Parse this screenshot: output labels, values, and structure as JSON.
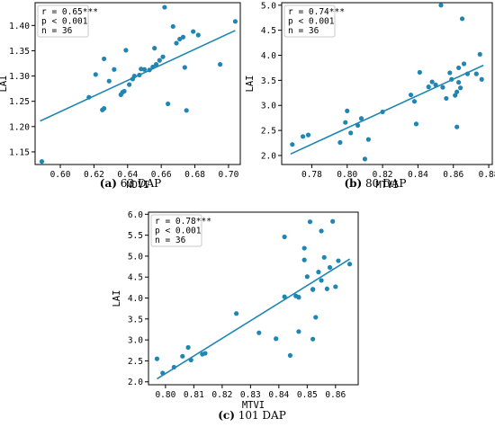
{
  "chart_data": [
    {
      "type": "scatter",
      "caption": {
        "letter": "(a)",
        "text": " 63 DAP"
      },
      "xlabel": "NDVI",
      "ylabel": "LAI",
      "xlim": [
        0.585,
        0.707
      ],
      "ylim": [
        1.125,
        1.445
      ],
      "xticks": [
        "0.60",
        "0.62",
        "0.64",
        "0.66",
        "0.68",
        "0.70"
      ],
      "yticks": [
        "1.15",
        "1.20",
        "1.25",
        "1.30",
        "1.35",
        "1.40"
      ],
      "stats": [
        "r = 0.65***",
        "p < 0.001",
        "n = 36"
      ],
      "fit": {
        "x": [
          0.588,
          0.704
        ],
        "y": [
          1.211,
          1.39
        ]
      },
      "points": [
        [
          0.589,
          1.131
        ],
        [
          0.617,
          1.258
        ],
        [
          0.621,
          1.303
        ],
        [
          0.625,
          1.233
        ],
        [
          0.626,
          1.236
        ],
        [
          0.626,
          1.334
        ],
        [
          0.629,
          1.29
        ],
        [
          0.632,
          1.313
        ],
        [
          0.636,
          1.263
        ],
        [
          0.637,
          1.268
        ],
        [
          0.638,
          1.27
        ],
        [
          0.639,
          1.351
        ],
        [
          0.641,
          1.283
        ],
        [
          0.643,
          1.294
        ],
        [
          0.644,
          1.3
        ],
        [
          0.647,
          1.302
        ],
        [
          0.648,
          1.314
        ],
        [
          0.65,
          1.313
        ],
        [
          0.653,
          1.312
        ],
        [
          0.655,
          1.318
        ],
        [
          0.656,
          1.355
        ],
        [
          0.657,
          1.323
        ],
        [
          0.659,
          1.331
        ],
        [
          0.661,
          1.338
        ],
        [
          0.662,
          1.436
        ],
        [
          0.664,
          1.245
        ],
        [
          0.667,
          1.398
        ],
        [
          0.669,
          1.365
        ],
        [
          0.671,
          1.373
        ],
        [
          0.673,
          1.377
        ],
        [
          0.674,
          1.317
        ],
        [
          0.675,
          1.232
        ],
        [
          0.679,
          1.388
        ],
        [
          0.682,
          1.381
        ],
        [
          0.695,
          1.323
        ],
        [
          0.704,
          1.408
        ]
      ]
    },
    {
      "type": "scatter",
      "caption": {
        "letter": "(b)",
        "text": " 80 DAP"
      },
      "xlabel": "MTVI",
      "ylabel": "LAI",
      "xlim": [
        0.763,
        0.882
      ],
      "ylim": [
        1.82,
        5.05
      ],
      "xticks": [
        "0.78",
        "0.80",
        "0.82",
        "0.84",
        "0.86",
        "0.88"
      ],
      "yticks": [
        "2.0",
        "2.5",
        "3.0",
        "3.5",
        "4.0",
        "4.5",
        "5.0"
      ],
      "stats": [
        "r = 0.74***",
        "p < 0.001",
        "n = 36"
      ],
      "fit": {
        "x": [
          0.768,
          0.877
        ],
        "y": [
          2.03,
          3.8
        ]
      },
      "points": [
        [
          0.769,
          2.22
        ],
        [
          0.775,
          2.38
        ],
        [
          0.778,
          2.41
        ],
        [
          0.796,
          2.26
        ],
        [
          0.799,
          2.66
        ],
        [
          0.8,
          2.89
        ],
        [
          0.802,
          2.45
        ],
        [
          0.806,
          2.6
        ],
        [
          0.808,
          2.74
        ],
        [
          0.81,
          1.93
        ],
        [
          0.812,
          2.32
        ],
        [
          0.82,
          2.87
        ],
        [
          0.836,
          3.21
        ],
        [
          0.838,
          3.08
        ],
        [
          0.839,
          2.63
        ],
        [
          0.841,
          3.66
        ],
        [
          0.846,
          3.37
        ],
        [
          0.848,
          3.47
        ],
        [
          0.85,
          3.41
        ],
        [
          0.853,
          5.0
        ],
        [
          0.854,
          3.36
        ],
        [
          0.856,
          3.14
        ],
        [
          0.858,
          3.65
        ],
        [
          0.859,
          3.52
        ],
        [
          0.861,
          3.2
        ],
        [
          0.862,
          3.27
        ],
        [
          0.862,
          2.57
        ],
        [
          0.863,
          3.46
        ],
        [
          0.863,
          3.75
        ],
        [
          0.864,
          3.35
        ],
        [
          0.865,
          4.73
        ],
        [
          0.866,
          3.83
        ],
        [
          0.868,
          3.63
        ],
        [
          0.873,
          3.63
        ],
        [
          0.875,
          4.02
        ],
        [
          0.876,
          3.52
        ]
      ]
    },
    {
      "type": "scatter",
      "caption": {
        "letter": "(c)",
        "text": " 101 DAP"
      },
      "xlabel": "MTVI",
      "ylabel": "LAI",
      "xlim": [
        0.794,
        0.868
      ],
      "ylim": [
        1.93,
        6.05
      ],
      "xticks": [
        "0.80",
        "0.81",
        "0.82",
        "0.83",
        "0.84",
        "0.85",
        "0.86"
      ],
      "yticks": [
        "2.0",
        "2.5",
        "3.0",
        "3.5",
        "4.0",
        "4.5",
        "5.0",
        "5.5",
        "6.0"
      ],
      "stats": [
        "r = 0.78***",
        "p < 0.001",
        "n = 36"
      ],
      "fit": {
        "x": [
          0.797,
          0.865
        ],
        "y": [
          2.07,
          4.93
        ]
      },
      "points": [
        [
          0.797,
          2.55
        ],
        [
          0.799,
          2.21
        ],
        [
          0.803,
          2.35
        ],
        [
          0.806,
          2.61
        ],
        [
          0.808,
          2.82
        ],
        [
          0.809,
          2.52
        ],
        [
          0.813,
          2.66
        ],
        [
          0.814,
          2.68
        ],
        [
          0.825,
          3.63
        ],
        [
          0.833,
          3.17
        ],
        [
          0.839,
          3.03
        ],
        [
          0.842,
          4.03
        ],
        [
          0.842,
          5.46
        ],
        [
          0.844,
          2.63
        ],
        [
          0.846,
          4.05
        ],
        [
          0.847,
          4.02
        ],
        [
          0.847,
          4.02
        ],
        [
          0.847,
          3.2
        ],
        [
          0.849,
          4.91
        ],
        [
          0.849,
          5.19
        ],
        [
          0.85,
          4.51
        ],
        [
          0.851,
          5.82
        ],
        [
          0.852,
          4.2
        ],
        [
          0.852,
          4.21
        ],
        [
          0.852,
          3.02
        ],
        [
          0.853,
          3.54
        ],
        [
          0.854,
          4.62
        ],
        [
          0.855,
          4.42
        ],
        [
          0.855,
          5.6
        ],
        [
          0.856,
          4.97
        ],
        [
          0.857,
          4.22
        ],
        [
          0.858,
          4.73
        ],
        [
          0.859,
          5.83
        ],
        [
          0.86,
          4.27
        ],
        [
          0.861,
          4.89
        ],
        [
          0.865,
          4.81
        ]
      ]
    }
  ]
}
